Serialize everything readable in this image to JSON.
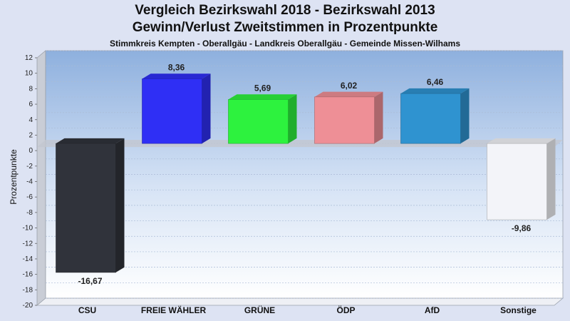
{
  "chart_data": {
    "type": "bar",
    "title": "Vergleich Bezirkswahl 2018 - Bezirkswahl 2013",
    "subtitle": "Gewinn/Verlust Zweitstimmen in Prozentpunkte",
    "subsubtitle": "Stimmkreis Kempten - Oberallgäu - Landkreis Oberallgäu - Gemeinde Missen-Wilhams",
    "xlabel": "",
    "ylabel": "Prozentpunkte",
    "ylim": [
      -20,
      12
    ],
    "yticks": [
      12,
      10,
      8,
      6,
      4,
      2,
      0,
      -2,
      -4,
      -6,
      -8,
      -10,
      -12,
      -14,
      -16,
      -18,
      -20
    ],
    "categories": [
      "CSU",
      "FREIE WÄHLER",
      "GRÜNE",
      "ÖDP",
      "AfD",
      "Sonstige"
    ],
    "values": [
      -16.67,
      8.36,
      5.69,
      6.02,
      6.46,
      -9.86
    ],
    "value_labels": [
      "-16,67",
      "8,36",
      "5,69",
      "6,02",
      "6,46",
      "-9,86"
    ],
    "colors": [
      "#30333b",
      "#2f2ff5",
      "#2df23e",
      "#ee8f96",
      "#2f93d0",
      "#f3f4f9"
    ],
    "grid": true,
    "style": "3d"
  }
}
